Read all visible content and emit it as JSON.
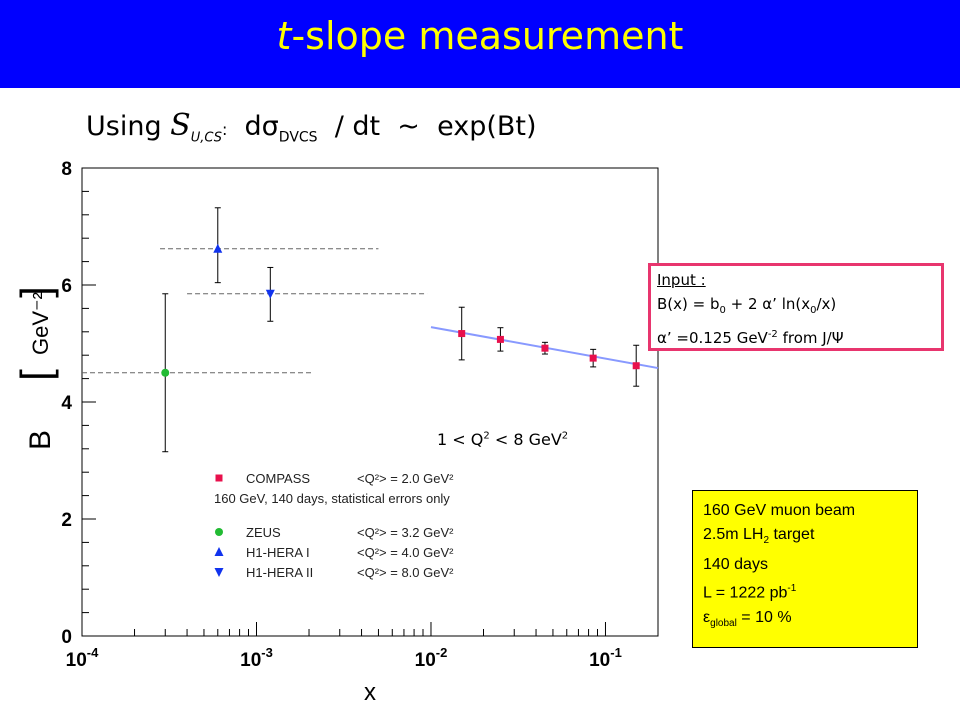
{
  "banner": {
    "title_italic": "t",
    "title_rest": "-slope measurement",
    "background": "#0000ff",
    "color": "#ffff00"
  },
  "subtitle": {
    "prefix": "Using ",
    "symbol": "S",
    "symbol_sub": "U,CS",
    "colon": ":",
    "formula_d": "  d",
    "sigma": "σ",
    "sigma_sub": "DVCS",
    "formula_rest": "  / dt  ~  exp(Bt)"
  },
  "input_box": {
    "header": "Input :",
    "line1_a": "B(x) = b",
    "line1_sub0": "0",
    "line1_b": " + 2 α’ ln(x",
    "line1_sub1": "0",
    "line1_c": "/x)",
    "line2_a": "α’ =0.125 GeV",
    "line2_sup": "-2",
    "line2_b": " from J/Ψ",
    "border_color": "#e8356e"
  },
  "q2_range": {
    "a": "1 < Q",
    "sup1": "2",
    "b": " < 8 GeV",
    "sup2": "2"
  },
  "beam_box": {
    "line1": "160 GeV muon beam",
    "line2_a": "2.5m LH",
    "line2_sub": "2",
    "line2_b": " target",
    "line3": "140 days",
    "line4_a": "L = 1222 pb",
    "line4_sup": "-1",
    "line5_a": "ε",
    "line5_sub": "global",
    "line5_b": " = 10 %",
    "background": "#ffff00"
  },
  "chart_data": {
    "type": "scatter",
    "x_scale": "log",
    "xlim": [
      0.0001,
      0.2
    ],
    "ylim": [
      0,
      8
    ],
    "xlabel": "x",
    "ylabel": "B [GeV⁻²]",
    "x_tick_labels": [
      {
        "x": 0.0001,
        "base": "10",
        "exp": "-4"
      },
      {
        "x": 0.001,
        "base": "10",
        "exp": "-3"
      },
      {
        "x": 0.01,
        "base": "10",
        "exp": "-2"
      },
      {
        "x": 0.1,
        "base": "10",
        "exp": "-1"
      }
    ],
    "y_ticks": [
      0,
      2,
      4,
      6,
      8
    ],
    "series": [
      {
        "name": "COMPASS",
        "color": "#e8104c",
        "marker": "square",
        "points": [
          {
            "x": 0.015,
            "y": 5.17,
            "err": 0.45
          },
          {
            "x": 0.025,
            "y": 5.07,
            "err": 0.2
          },
          {
            "x": 0.045,
            "y": 4.92,
            "err": 0.1
          },
          {
            "x": 0.085,
            "y": 4.75,
            "err": 0.15
          },
          {
            "x": 0.15,
            "y": 4.62,
            "err": 0.35
          }
        ]
      },
      {
        "name": "ZEUS",
        "color": "#22bb33",
        "marker": "circle",
        "points": [
          {
            "x": 0.0003,
            "y": 4.5,
            "err_up": 1.35,
            "err_down": 1.35,
            "x_low": 0.0001,
            "x_high": 0.0021
          }
        ]
      },
      {
        "name": "H1-HERA I",
        "color": "#1133ee",
        "marker": "triangle-up",
        "points": [
          {
            "x": 0.0006,
            "y": 6.62,
            "err_up": 0.7,
            "err_down": 0.58,
            "x_low": 0.00028,
            "x_high": 0.005
          }
        ]
      },
      {
        "name": "H1-HERA II",
        "color": "#1133ee",
        "marker": "triangle-down",
        "points": [
          {
            "x": 0.0012,
            "y": 5.85,
            "err_up": 0.45,
            "err_down": 0.47,
            "x_low": 0.0004,
            "x_high": 0.0095
          }
        ]
      }
    ],
    "fit_line": {
      "color": "#8899ff",
      "x1": 0.01,
      "y1": 5.28,
      "x2": 0.2,
      "y2": 4.58
    },
    "legend": [
      {
        "label": "COMPASS",
        "q2": "<Q²> = 2.0 GeV²",
        "color": "#e8104c",
        "marker": "square"
      },
      {
        "note": "160 GeV, 140 days, statistical errors only"
      },
      {
        "label": "ZEUS",
        "q2": "<Q²> = 3.2 GeV²",
        "color": "#22bb33",
        "marker": "circle"
      },
      {
        "label": "H1-HERA I",
        "q2": "<Q²> = 4.0 GeV²",
        "color": "#1133ee",
        "marker": "triangle-up"
      },
      {
        "label": "H1-HERA II",
        "q2": "<Q²> = 8.0 GeV²",
        "color": "#1133ee",
        "marker": "triangle-down"
      }
    ],
    "legend_placement": "lower-left"
  }
}
